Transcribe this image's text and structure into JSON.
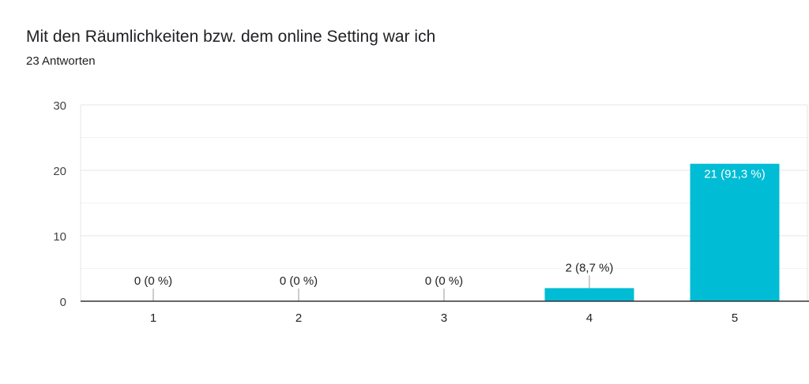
{
  "header": {
    "title": "Mit den Räumlichkeiten bzw. dem online Setting war ich",
    "response_count": "23 Antworten"
  },
  "chart_data": {
    "type": "bar",
    "categories": [
      "1",
      "2",
      "3",
      "4",
      "5"
    ],
    "values": [
      0,
      0,
      0,
      2,
      21
    ],
    "data_labels": [
      "0 (0 %)",
      "0 (0 %)",
      "0 (0 %)",
      "2 (8,7 %)",
      "21 (91,3 %)"
    ],
    "ylim": [
      0,
      30
    ],
    "yticks": [
      "0",
      "10",
      "20",
      "30"
    ],
    "grid": true,
    "legend": "none",
    "bar_color": "#00BCD4"
  }
}
